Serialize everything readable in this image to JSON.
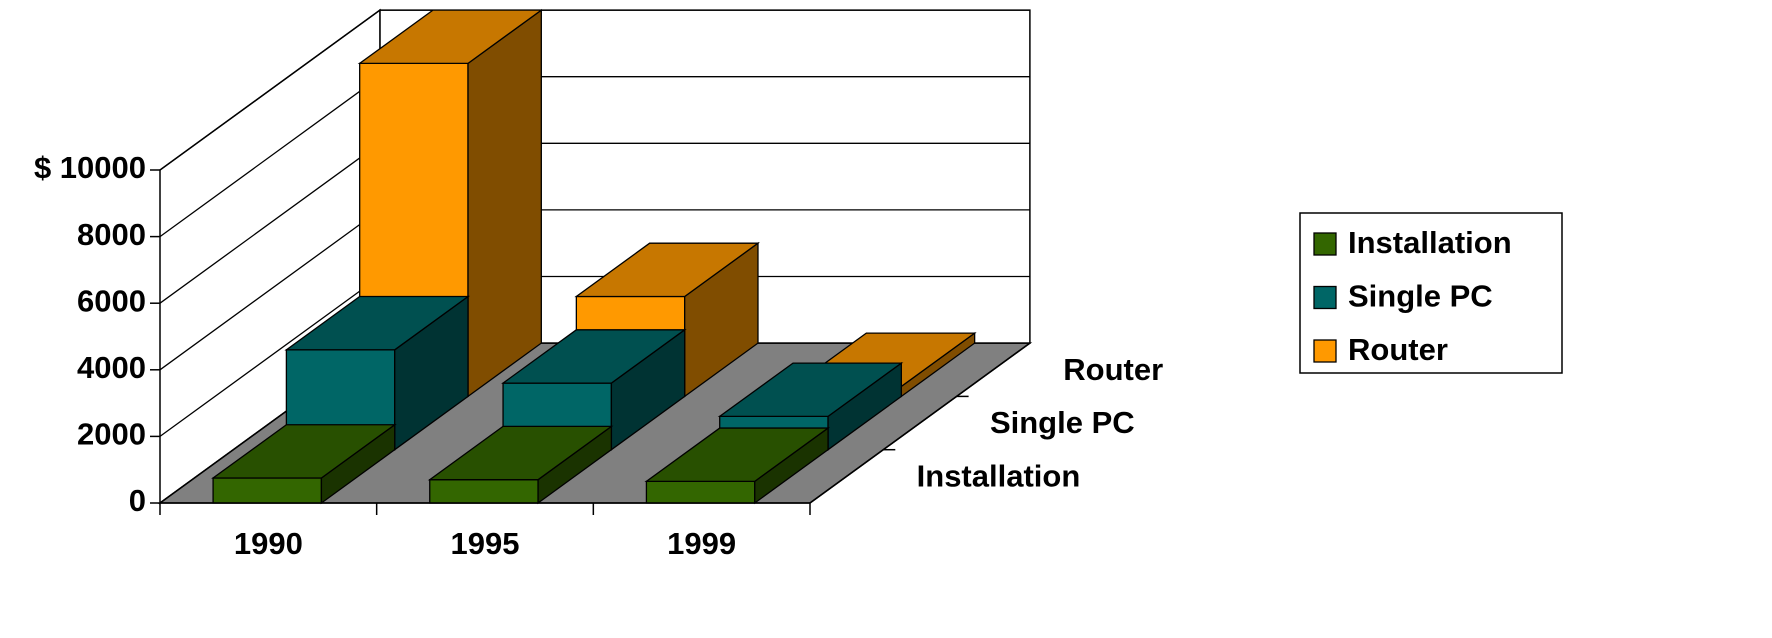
{
  "chart_data": {
    "type": "bar3d",
    "categories": [
      "1990",
      "1995",
      "1999"
    ],
    "series": [
      {
        "name": "Installation",
        "color": "#336600",
        "values": [
          750,
          700,
          650
        ]
      },
      {
        "name": "Single PC",
        "color": "#006666",
        "values": [
          3000,
          2000,
          1000
        ]
      },
      {
        "name": "Router",
        "color": "#ff9900",
        "values": [
          10000,
          3000,
          300
        ]
      }
    ],
    "ylim": [
      0,
      10000
    ],
    "yticks": [
      0,
      2000,
      4000,
      6000,
      8000,
      {
        "value": 10000,
        "label": "$ 10000"
      }
    ],
    "grid": true,
    "legend": "right"
  }
}
